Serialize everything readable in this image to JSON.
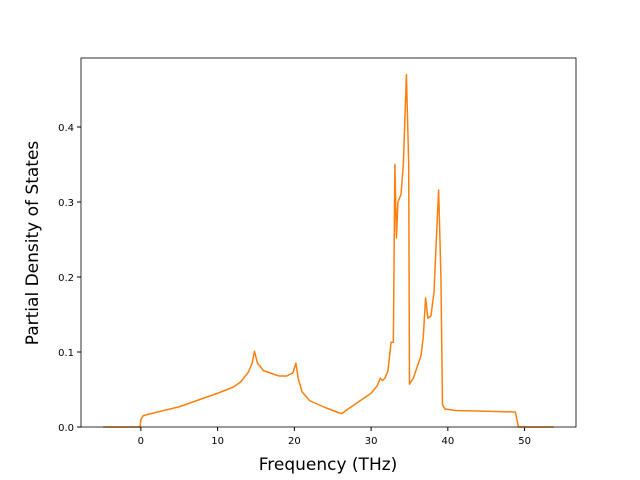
{
  "chart_data": {
    "type": "line",
    "x_label": "Frequency (THz)",
    "y_label": "Partial Density of States",
    "color": "#ff7f0e",
    "x": [
      -4.9,
      -0.1,
      0,
      0.3,
      1,
      3,
      5,
      10,
      12,
      13,
      14,
      14.5,
      14.8,
      15.2,
      16,
      18,
      19,
      19.8,
      20.2,
      20.5,
      21,
      22,
      24,
      25.8,
      26.2,
      27,
      30,
      30.8,
      31.2,
      31.5,
      31.8,
      32.2,
      32.6,
      32.9,
      33.1,
      33.3,
      33.5,
      33.9,
      34.2,
      34.6,
      34.9,
      35.0,
      35.5,
      36,
      36.5,
      36.8,
      37.1,
      37.4,
      37.8,
      38.2,
      38.5,
      38.8,
      39.1,
      39.3,
      39.6,
      41,
      45,
      48.8,
      49.2,
      53.8
    ],
    "values": [
      0,
      0,
      0.01,
      0.015,
      0.017,
      0.022,
      0.027,
      0.045,
      0.053,
      0.06,
      0.073,
      0.085,
      0.101,
      0.085,
      0.075,
      0.068,
      0.068,
      0.072,
      0.085,
      0.065,
      0.047,
      0.035,
      0.026,
      0.019,
      0.018,
      0.024,
      0.045,
      0.055,
      0.065,
      0.062,
      0.065,
      0.075,
      0.113,
      0.113,
      0.35,
      0.252,
      0.3,
      0.31,
      0.35,
      0.47,
      0.35,
      0.057,
      0.065,
      0.08,
      0.095,
      0.12,
      0.172,
      0.145,
      0.148,
      0.18,
      0.25,
      0.316,
      0.2,
      0.03,
      0.024,
      0.022,
      0.021,
      0.02,
      0,
      0
    ],
    "xlim": [
      -7.8,
      56.7
    ],
    "ylim": [
      0,
      0.492
    ],
    "xticks": [
      0,
      10,
      20,
      30,
      40,
      50
    ],
    "yticks": [
      {
        "value": 0,
        "label": "0.0"
      },
      {
        "value": 0.1,
        "label": "0.1"
      },
      {
        "value": 0.2,
        "label": "0.2"
      },
      {
        "value": 0.3,
        "label": "0.3"
      },
      {
        "value": 0.4,
        "label": "0.4"
      }
    ]
  }
}
